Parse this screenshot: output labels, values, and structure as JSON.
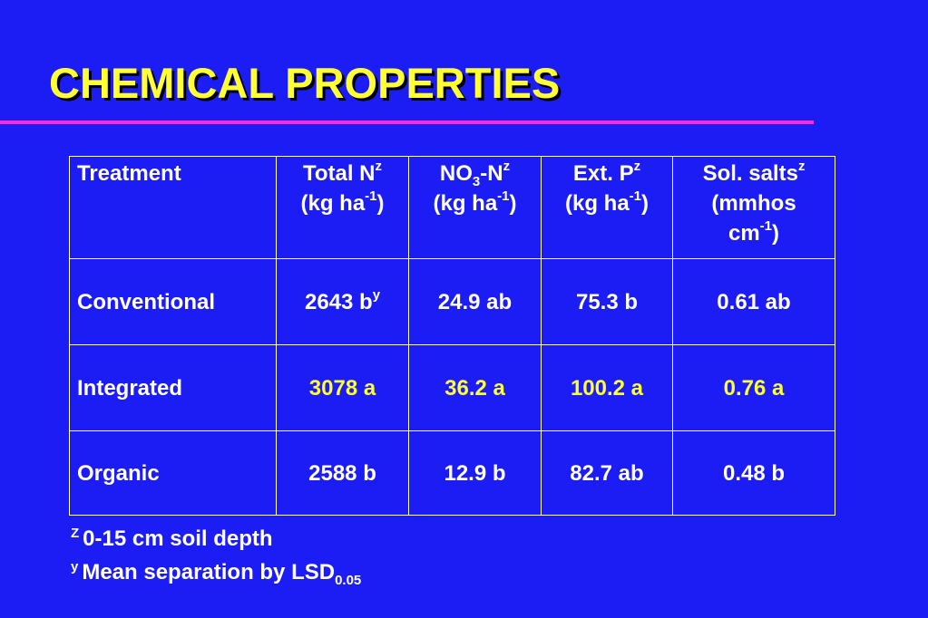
{
  "title": "CHEMICAL PROPERTIES",
  "table": {
    "header": [
      [
        "Treatment"
      ],
      [
        "Total N",
        "z",
        "(kg ha",
        "-1",
        ")"
      ],
      [
        "NO",
        "3",
        "-N",
        "z",
        "(kg ha",
        "-1",
        ")"
      ],
      [
        "Ext. P",
        "z",
        "(kg ha",
        "-1",
        ")"
      ],
      [
        "Sol. salts",
        "z",
        "(mmhos",
        "cm",
        "-1",
        ")"
      ]
    ],
    "rows": [
      [
        "Conventional",
        [
          "2643 b",
          "y"
        ],
        "24.9 ab",
        "75.3 b",
        "0.61 ab"
      ],
      [
        "Integrated",
        "3078 a",
        "36.2 a",
        "100.2 a",
        "0.76 a"
      ],
      [
        "Organic",
        "2588 b",
        "12.9 b",
        "82.7 ab",
        "0.48 b"
      ]
    ]
  },
  "footnotes": [
    {
      "mark": "Z",
      "text": "0-15 cm soil depth"
    },
    {
      "mark": "y",
      "text": "Mean separation by LSD",
      "sub": "0.05"
    }
  ]
}
